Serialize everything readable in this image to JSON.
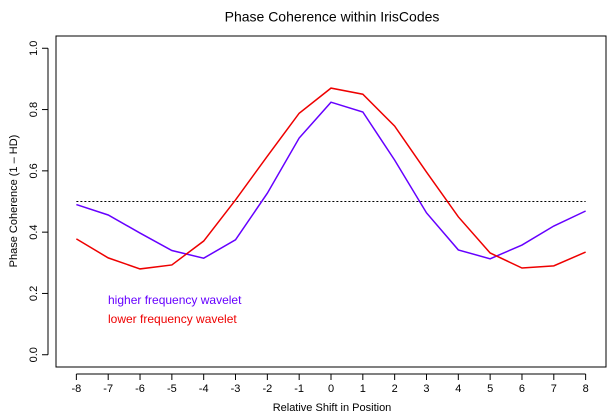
{
  "chart_data": {
    "type": "line",
    "title": "Phase Coherence within IrisCodes",
    "x_label": "Relative Shift in Position",
    "y_label": "Phase Coherence    (1 – HD)",
    "x": [
      -8,
      -7,
      -6,
      -5,
      -4,
      -3,
      -2,
      -1,
      0,
      1,
      2,
      3,
      4,
      5,
      6,
      7,
      8
    ],
    "series": [
      {
        "name": "higher frequency wavelet",
        "color": "#6600ff",
        "values": [
          0.49,
          0.456,
          0.397,
          0.34,
          0.315,
          0.375,
          0.527,
          0.707,
          0.824,
          0.792,
          0.635,
          0.463,
          0.342,
          0.313,
          0.358,
          0.42,
          0.469
        ]
      },
      {
        "name": "lower frequency wavelet",
        "color": "#ee0000",
        "values": [
          0.378,
          0.316,
          0.28,
          0.293,
          0.371,
          0.505,
          0.648,
          0.788,
          0.87,
          0.85,
          0.746,
          0.596,
          0.45,
          0.332,
          0.283,
          0.29,
          0.335
        ]
      }
    ],
    "reference_line": 0.5,
    "xlim": [
      -8.64,
      8.64
    ],
    "ylim": [
      -0.04,
      1.04
    ],
    "xticks": [
      -8,
      -7,
      -6,
      -5,
      -4,
      -3,
      -2,
      -1,
      0,
      1,
      2,
      3,
      4,
      5,
      6,
      7,
      8
    ],
    "yticks": [
      {
        "value": 0,
        "label": "0.0"
      },
      {
        "value": 0.2,
        "label": "0.2"
      },
      {
        "value": 0.4,
        "label": "0.4"
      },
      {
        "value": 0.6,
        "label": "0.6"
      },
      {
        "value": 0.8,
        "label": "0.8"
      },
      {
        "value": 1,
        "label": "1.0"
      }
    ]
  }
}
